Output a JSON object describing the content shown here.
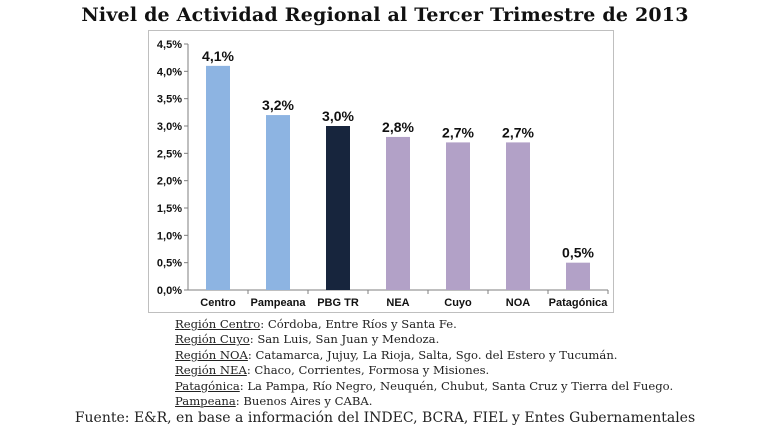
{
  "chart_data": {
    "type": "bar",
    "title": "Nivel de Actividad Regional al Tercer Trimestre de 2013",
    "categories": [
      "Centro",
      "Pampeana",
      "PBG TR",
      "NEA",
      "Cuyo",
      "NOA",
      "Patagónica"
    ],
    "values": [
      4.1,
      3.2,
      3.0,
      2.8,
      2.7,
      2.7,
      0.5
    ],
    "value_labels": [
      "4,1%",
      "3,2%",
      "3,0%",
      "2,8%",
      "2,7%",
      "2,7%",
      "0,5%"
    ],
    "colors": [
      "#8db4e2",
      "#8db4e2",
      "#17253d",
      "#b2a1c7",
      "#b2a1c7",
      "#b2a1c7",
      "#b2a1c7"
    ],
    "ylim": [
      0,
      4.5
    ],
    "yticks": [
      0,
      0.5,
      1.0,
      1.5,
      2.0,
      2.5,
      3.0,
      3.5,
      4.0,
      4.5
    ],
    "ytick_labels": [
      "0,0%",
      "0,5%",
      "1,0%",
      "1,5%",
      "2,0%",
      "2,5%",
      "3,0%",
      "3,5%",
      "4,0%",
      "4,5%"
    ],
    "xlabel": "",
    "ylabel": "",
    "grid": false,
    "legend": false
  },
  "notes": [
    {
      "key": "Región Centro",
      "text": ": Córdoba, Entre Ríos y Santa Fe."
    },
    {
      "key": "Región Cuyo",
      "text": ": San Luis, San Juan y Mendoza."
    },
    {
      "key": "Región NOA",
      "text": ": Catamarca, Jujuy, La Rioja, Salta, Sgo. del Estero y Tucumán."
    },
    {
      "key": "Región NEA",
      "text": ": Chaco, Corrientes, Formosa y Misiones."
    },
    {
      "key": "Patagónica",
      "text": ": La Pampa, Río Negro, Neuquén, Chubut, Santa Cruz y Tierra del Fuego."
    },
    {
      "key": "Pampeana",
      "text": ": Buenos Aires y CABA."
    }
  ],
  "source": "Fuente: E&R, en base a información del INDEC, BCRA, FIEL y Entes Gubernamentales"
}
